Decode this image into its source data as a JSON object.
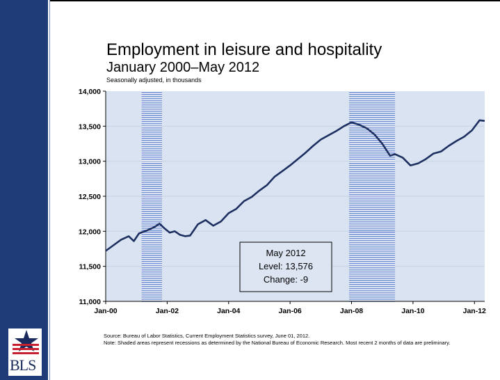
{
  "chart_data": {
    "type": "line",
    "title": "Employment in leisure and hospitality",
    "subtitle": "January 2000–May 2012",
    "note": "Seasonally adjusted, in thousands",
    "xlabel": "",
    "ylabel": "",
    "ylim": [
      11000,
      14000
    ],
    "yticks": [
      11000,
      11500,
      12000,
      12500,
      13000,
      13500,
      14000
    ],
    "ytick_labels": [
      "11,000",
      "11,500",
      "12,000",
      "12,500",
      "13,000",
      "13,500",
      "14,000"
    ],
    "xlim": [
      "2000-01",
      "2012-05"
    ],
    "xtick_labels": [
      "Jan-00",
      "Jan-02",
      "Jan-04",
      "Jan-06",
      "Jan-08",
      "Jan-10",
      "Jan-12"
    ],
    "recessions": [
      [
        "2001-03",
        "2001-11"
      ],
      [
        "2007-12",
        "2009-06"
      ]
    ],
    "grid": true,
    "legend": "none",
    "line_color": "#1c2f60",
    "plot_background": "#d9e3f1",
    "recession_color": "#5d7fd0",
    "series": [
      {
        "values": [
          {
            "x": "2000-01",
            "y": 11720
          },
          {
            "x": "2000-04",
            "y": 11800
          },
          {
            "x": "2000-07",
            "y": 11880
          },
          {
            "x": "2000-10",
            "y": 11930
          },
          {
            "x": "2000-12",
            "y": 11860
          },
          {
            "x": "2001-02",
            "y": 11970
          },
          {
            "x": "2001-05",
            "y": 12010
          },
          {
            "x": "2001-08",
            "y": 12060
          },
          {
            "x": "2001-10",
            "y": 12110
          },
          {
            "x": "2001-12",
            "y": 12040
          },
          {
            "x": "2002-02",
            "y": 11980
          },
          {
            "x": "2002-04",
            "y": 12000
          },
          {
            "x": "2002-06",
            "y": 11950
          },
          {
            "x": "2002-08",
            "y": 11930
          },
          {
            "x": "2002-10",
            "y": 11940
          },
          {
            "x": "2003-01",
            "y": 12100
          },
          {
            "x": "2003-04",
            "y": 12160
          },
          {
            "x": "2003-07",
            "y": 12080
          },
          {
            "x": "2003-10",
            "y": 12140
          },
          {
            "x": "2004-01",
            "y": 12260
          },
          {
            "x": "2004-04",
            "y": 12320
          },
          {
            "x": "2004-07",
            "y": 12430
          },
          {
            "x": "2004-10",
            "y": 12490
          },
          {
            "x": "2005-01",
            "y": 12580
          },
          {
            "x": "2005-04",
            "y": 12660
          },
          {
            "x": "2005-07",
            "y": 12780
          },
          {
            "x": "2005-10",
            "y": 12860
          },
          {
            "x": "2006-01",
            "y": 12940
          },
          {
            "x": "2006-04",
            "y": 13030
          },
          {
            "x": "2006-07",
            "y": 13120
          },
          {
            "x": "2006-10",
            "y": 13220
          },
          {
            "x": "2007-01",
            "y": 13310
          },
          {
            "x": "2007-04",
            "y": 13370
          },
          {
            "x": "2007-07",
            "y": 13430
          },
          {
            "x": "2007-10",
            "y": 13500
          },
          {
            "x": "2008-01",
            "y": 13555
          },
          {
            "x": "2008-04",
            "y": 13520
          },
          {
            "x": "2008-07",
            "y": 13470
          },
          {
            "x": "2008-10",
            "y": 13380
          },
          {
            "x": "2009-01",
            "y": 13250
          },
          {
            "x": "2009-04",
            "y": 13080
          },
          {
            "x": "2009-06",
            "y": 13100
          },
          {
            "x": "2009-09",
            "y": 13050
          },
          {
            "x": "2009-12",
            "y": 12940
          },
          {
            "x": "2010-03",
            "y": 12970
          },
          {
            "x": "2010-06",
            "y": 13030
          },
          {
            "x": "2010-09",
            "y": 13110
          },
          {
            "x": "2010-12",
            "y": 13140
          },
          {
            "x": "2011-03",
            "y": 13220
          },
          {
            "x": "2011-06",
            "y": 13290
          },
          {
            "x": "2011-09",
            "y": 13350
          },
          {
            "x": "2011-12",
            "y": 13440
          },
          {
            "x": "2012-03",
            "y": 13585
          },
          {
            "x": "2012-05",
            "y": 13576
          }
        ]
      }
    ],
    "annotation": {
      "lines": [
        "May 2012",
        "Level: 13,576",
        "Change: -9"
      ]
    }
  },
  "footer": {
    "source": "Source: Bureau of Labor Statistics, Current Employment Statistics survey, June 01, 2012.",
    "note": "Note: Shaded areas represent recessions as determined by the National Bureau of Economic Research. Most recent 2 months of data are preliminary."
  },
  "logo": {
    "text": "BLS"
  }
}
